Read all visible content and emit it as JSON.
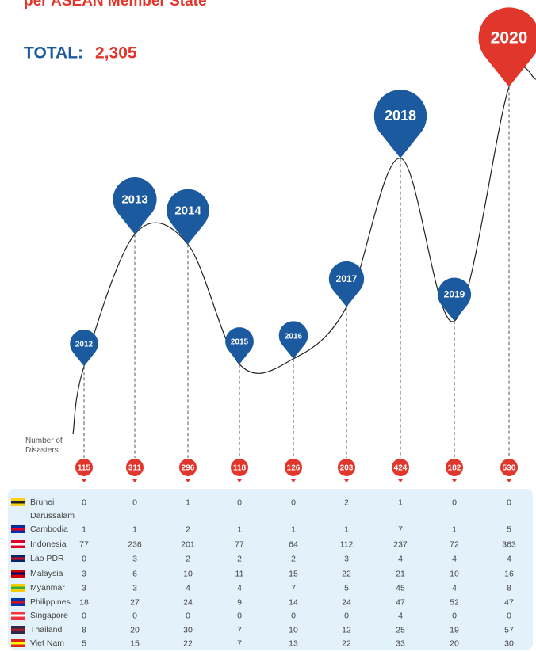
{
  "chart_data": {
    "type": "pin",
    "title": "per ASEAN Member State",
    "total_label": "TOTAL:",
    "total_value": "2,305",
    "axis_label": "Number of Disasters",
    "categories": [
      "2012",
      "2013",
      "2014",
      "2015",
      "2016",
      "2017",
      "2018",
      "2019",
      "2020"
    ],
    "values": [
      115,
      311,
      296,
      118,
      126,
      203,
      424,
      182,
      530
    ],
    "colors": [
      "#1b5a9f",
      "#1b5a9f",
      "#1b5a9f",
      "#1b5a9f",
      "#1b5a9f",
      "#1b5a9f",
      "#1b5a9f",
      "#1b5a9f",
      "#e0362c"
    ],
    "table": {
      "rows": [
        {
          "name": "Brunei Darussalam",
          "values": [
            0,
            0,
            1,
            0,
            0,
            2,
            1,
            0,
            0
          ]
        },
        {
          "name": "Cambodia",
          "values": [
            1,
            1,
            2,
            1,
            1,
            1,
            7,
            1,
            5
          ]
        },
        {
          "name": "Indonesia",
          "values": [
            77,
            236,
            201,
            77,
            64,
            112,
            237,
            72,
            363
          ]
        },
        {
          "name": "Lao PDR",
          "values": [
            0,
            3,
            2,
            2,
            2,
            3,
            4,
            4,
            4
          ]
        },
        {
          "name": "Malaysia",
          "values": [
            3,
            6,
            10,
            11,
            15,
            22,
            21,
            10,
            16
          ]
        },
        {
          "name": "Myanmar",
          "values": [
            3,
            3,
            4,
            4,
            7,
            5,
            45,
            4,
            8
          ]
        },
        {
          "name": "Philippines",
          "values": [
            18,
            27,
            24,
            9,
            14,
            24,
            47,
            52,
            47
          ]
        },
        {
          "name": "Singapore",
          "values": [
            0,
            0,
            0,
            0,
            0,
            0,
            4,
            0,
            0
          ]
        },
        {
          "name": "Thailand",
          "values": [
            8,
            20,
            30,
            7,
            10,
            12,
            25,
            19,
            57
          ]
        },
        {
          "name": "Viet Nam",
          "values": [
            5,
            15,
            22,
            7,
            13,
            22,
            33,
            20,
            30
          ]
        }
      ]
    }
  }
}
